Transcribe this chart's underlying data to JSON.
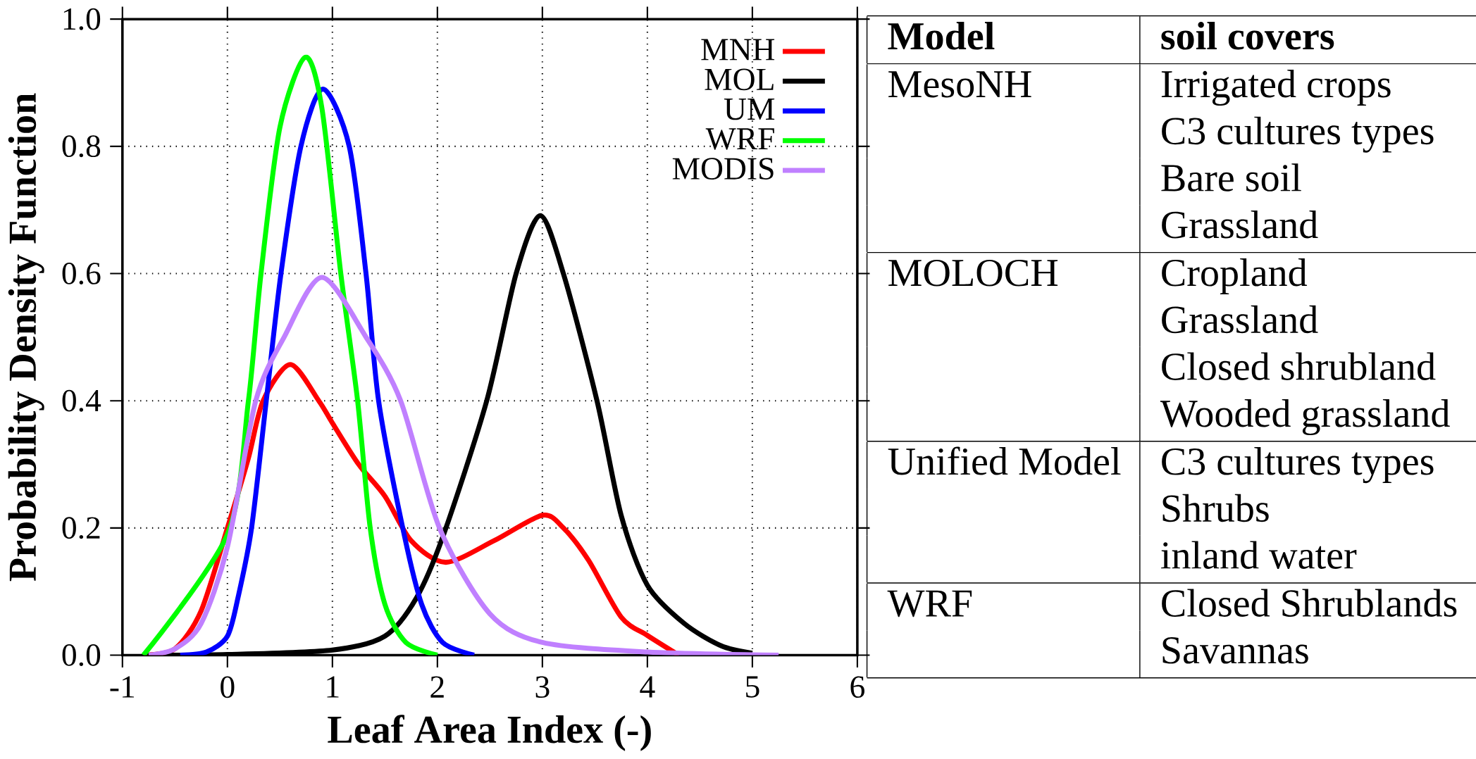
{
  "chart_data": [
    {
      "type": "line",
      "xlabel": "Leaf Area Index (-)",
      "ylabel": "Probability Density Function",
      "xlim": [
        -1,
        6
      ],
      "ylim": [
        0,
        1
      ],
      "xticks": [
        -1,
        0,
        1,
        2,
        3,
        4,
        5,
        6
      ],
      "yticks": [
        {
          "value": 0,
          "label": "0.0"
        },
        {
          "value": 0.2,
          "label": "0.2"
        },
        {
          "value": 0.4,
          "label": "0.4"
        },
        {
          "value": 0.6,
          "label": "0.6"
        },
        {
          "value": 0.8,
          "label": "0.8"
        },
        {
          "value": 1,
          "label": "1.0"
        }
      ],
      "grid": true,
      "legend": "top right",
      "line_style": "solid",
      "series": [
        {
          "name": "MNH",
          "color": "#ff0000",
          "x": [
            -0.8,
            -0.5,
            -0.25,
            0,
            0.2,
            0.34,
            0.6,
            0.87,
            1.0,
            1.25,
            1.5,
            1.75,
            2.08,
            2.54,
            3.0,
            3.2,
            3.44,
            3.75,
            4.0,
            4.3
          ],
          "values": [
            0,
            0.01,
            0.07,
            0.2,
            0.31,
            0.4,
            0.457,
            0.4,
            0.365,
            0.3,
            0.25,
            0.18,
            0.146,
            0.18,
            0.22,
            0.2,
            0.149,
            0.06,
            0.031,
            0
          ]
        },
        {
          "name": "MOL",
          "color": "#000000",
          "x": [
            -0.8,
            0,
            1,
            1.5,
            1.8,
            2.06,
            2.47,
            2.75,
            2.98,
            3.2,
            3.52,
            3.75,
            4.0,
            4.35,
            4.7,
            5.0
          ],
          "values": [
            0,
            0.001,
            0.008,
            0.03,
            0.09,
            0.19,
            0.4,
            0.6,
            0.691,
            0.6,
            0.4,
            0.22,
            0.11,
            0.05,
            0.015,
            0.003
          ]
        },
        {
          "name": "UM",
          "color": "#0000ff",
          "x": [
            -0.45,
            -0.2,
            0,
            0.1,
            0.23,
            0.37,
            0.51,
            0.7,
            0.91,
            1.16,
            1.32,
            1.44,
            1.67,
            1.85,
            2.05,
            2.35
          ],
          "values": [
            0,
            0.005,
            0.03,
            0.09,
            0.2,
            0.4,
            0.6,
            0.8,
            0.89,
            0.8,
            0.6,
            0.4,
            0.2,
            0.08,
            0.02,
            0
          ]
        },
        {
          "name": "WRF",
          "color": "#00ff00",
          "x": [
            -0.8,
            -0.5,
            -0.25,
            0,
            0.2,
            0.32,
            0.5,
            0.74,
            0.9,
            1.08,
            1.24,
            1.36,
            1.5,
            1.7,
            2.0
          ],
          "values": [
            0,
            null,
            null,
            0.19,
            0.4,
            0.6,
            0.83,
            0.94,
            0.86,
            0.6,
            0.4,
            0.2,
            0.08,
            0.02,
            0
          ]
        },
        {
          "name": "MODIS",
          "color": "#c080ff",
          "x": [
            -0.75,
            -0.5,
            -0.25,
            0,
            0.27,
            0.54,
            0.9,
            1.32,
            1.65,
            2.02,
            2.5,
            3,
            4,
            5.25
          ],
          "values": [
            0,
            0.01,
            0.05,
            0.17,
            0.4,
            0.5,
            0.594,
            0.5,
            0.4,
            0.2,
            0.065,
            0.02,
            0.005,
            0
          ]
        }
      ]
    },
    {
      "type": "other",
      "annotations": [
        "Model",
        "soil covers",
        "MesoNH",
        "Irrigated crops",
        "C3 cultures types",
        "Bare soil",
        "Grassland",
        "MOLOCH",
        "Cropland",
        "Grassland",
        "Closed shrubland",
        "Wooded grassland",
        "Unified Model",
        "C3 cultures types",
        "Shrubs",
        "inland water",
        "WRF",
        "Closed Shrublands",
        "Savannas"
      ]
    }
  ]
}
